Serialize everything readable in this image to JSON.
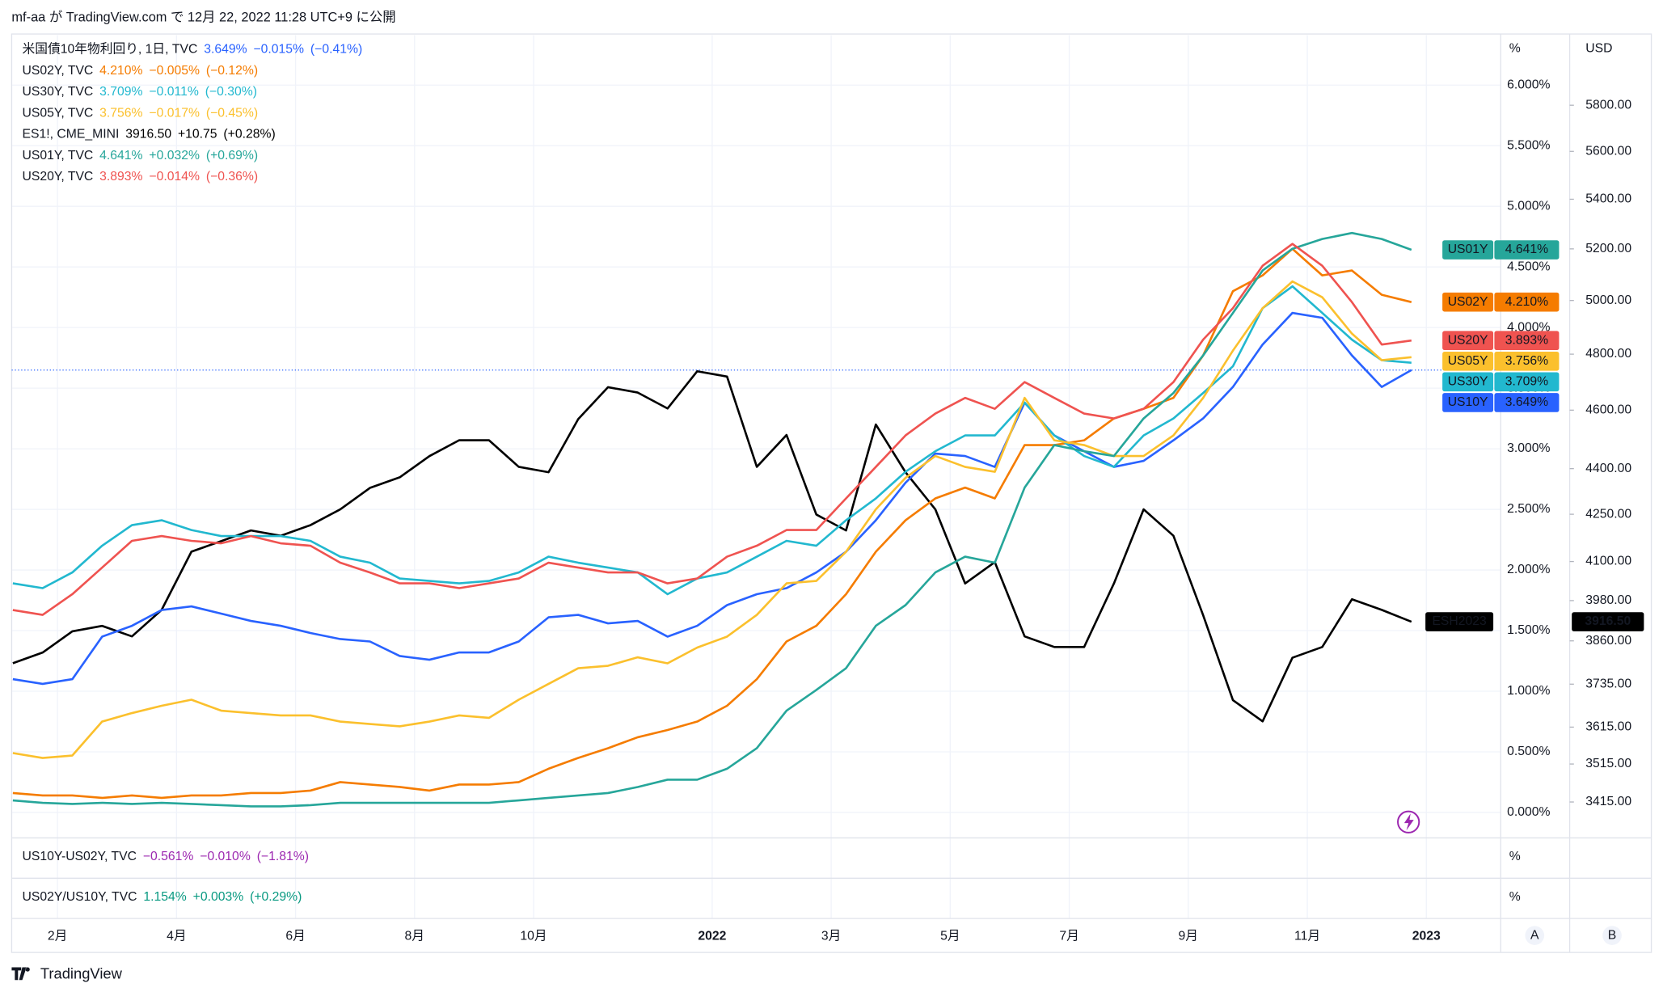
{
  "header": "mf-aa が TradingView.com で 12月 22, 2022 11:28 UTC+9 に公開",
  "footer": "TradingView",
  "chart_data": {
    "type": "line",
    "x": [
      0.25,
      0.75,
      1.25,
      1.75,
      2.25,
      2.75,
      3.25,
      3.75,
      4.25,
      4.75,
      5.25,
      5.75,
      6.25,
      6.75,
      7.25,
      7.75,
      8.25,
      8.75,
      9.25,
      9.75,
      10.25,
      10.75,
      11.25,
      11.75,
      12.25,
      12.75,
      13.25,
      13.75,
      14.25,
      14.75,
      15.25,
      15.75,
      16.25,
      16.75,
      17.25,
      17.75,
      18.25,
      18.75,
      19.25,
      19.75,
      20.25,
      20.75,
      21.25,
      21.75,
      22.25,
      22.75,
      23.25,
      23.75
    ],
    "xlim": [
      0.23,
      25.25
    ],
    "xticks": [
      {
        "value": 1,
        "label": "2月"
      },
      {
        "value": 3,
        "label": "4月"
      },
      {
        "value": 5,
        "label": "6月"
      },
      {
        "value": 7,
        "label": "8月"
      },
      {
        "value": 9,
        "label": "10月"
      },
      {
        "value": 12,
        "label": "2022"
      },
      {
        "value": 14,
        "label": "3月"
      },
      {
        "value": 16,
        "label": "5月"
      },
      {
        "value": 18,
        "label": "7月"
      },
      {
        "value": 20,
        "label": "9月"
      },
      {
        "value": 22,
        "label": "11月"
      },
      {
        "value": 24,
        "label": "2023"
      }
    ],
    "ylabel": "%",
    "ylim": [
      -0.21,
      6.395
    ],
    "yticks": [
      {
        "value": 0,
        "label": "0.000%"
      },
      {
        "value": 0.5,
        "label": "0.500%"
      },
      {
        "value": 1,
        "label": "1.000%"
      },
      {
        "value": 1.5,
        "label": "1.500%"
      },
      {
        "value": 2,
        "label": "2.000%"
      },
      {
        "value": 2.5,
        "label": "2.500%"
      },
      {
        "value": 3,
        "label": "3.000%"
      },
      {
        "value": 3.5,
        "label": "3.500%"
      },
      {
        "value": 4,
        "label": "4.000%"
      },
      {
        "value": 4.5,
        "label": "4.500%"
      },
      {
        "value": 5,
        "label": "5.000%"
      },
      {
        "value": 5.5,
        "label": "5.500%"
      },
      {
        "value": 6,
        "label": "6.000%"
      }
    ],
    "y2label": "USD",
    "y2lim": [
      3323,
      6108
    ],
    "y2log": true,
    "y2ticks": [
      {
        "value": 3415,
        "label": "3415.00"
      },
      {
        "value": 3515,
        "label": "3515.00"
      },
      {
        "value": 3615,
        "label": "3615.00"
      },
      {
        "value": 3735,
        "label": "3735.00"
      },
      {
        "value": 3860,
        "label": "3860.00"
      },
      {
        "value": 3980,
        "label": "3980.00"
      },
      {
        "value": 4100,
        "label": "4100.00"
      },
      {
        "value": 4250,
        "label": "4250.00"
      },
      {
        "value": 4400,
        "label": "4400.00"
      },
      {
        "value": 4600,
        "label": "4600.00"
      },
      {
        "value": 4800,
        "label": "4800.00"
      },
      {
        "value": 5000,
        "label": "5000.00"
      },
      {
        "value": 5200,
        "label": "5200.00"
      },
      {
        "value": 5400,
        "label": "5400.00"
      },
      {
        "value": 5600,
        "label": "5600.00"
      },
      {
        "value": 5800,
        "label": "5800.00"
      }
    ],
    "grid": true,
    "series": [
      {
        "name": "米国債10年物利回り, 1日, TVC",
        "tag": "US10Y",
        "color": "#2962ff",
        "last_label": "3.649%",
        "change": "−0.015%",
        "change_pct": "(−0.41%)",
        "values": [
          1.1,
          1.06,
          1.1,
          1.45,
          1.54,
          1.67,
          1.7,
          1.64,
          1.58,
          1.54,
          1.48,
          1.43,
          1.41,
          1.29,
          1.26,
          1.32,
          1.32,
          1.41,
          1.61,
          1.63,
          1.56,
          1.58,
          1.45,
          1.54,
          1.71,
          1.8,
          1.85,
          1.98,
          2.15,
          2.41,
          2.72,
          2.96,
          2.94,
          2.85,
          3.38,
          3.11,
          2.98,
          2.85,
          2.9,
          3.07,
          3.25,
          3.51,
          3.86,
          4.12,
          4.08,
          3.77,
          3.51,
          3.649
        ]
      },
      {
        "name": "US02Y, TVC",
        "tag": "US02Y",
        "color": "#f57c00",
        "last_label": "4.210%",
        "change": "−0.005%",
        "change_pct": "(−0.12%)",
        "values": [
          0.16,
          0.14,
          0.14,
          0.12,
          0.14,
          0.12,
          0.14,
          0.14,
          0.16,
          0.16,
          0.18,
          0.25,
          0.23,
          0.21,
          0.18,
          0.23,
          0.23,
          0.25,
          0.36,
          0.45,
          0.53,
          0.62,
          0.68,
          0.75,
          0.88,
          1.1,
          1.41,
          1.54,
          1.8,
          2.15,
          2.41,
          2.59,
          2.68,
          2.59,
          3.03,
          3.03,
          3.07,
          3.25,
          3.33,
          3.42,
          3.77,
          4.3,
          4.43,
          4.65,
          4.43,
          4.47,
          4.27,
          4.21
        ]
      },
      {
        "name": "US30Y, TVC",
        "tag": "US30Y",
        "color": "#22b8cf",
        "last_label": "3.709%",
        "change": "−0.011%",
        "change_pct": "(−0.30%)",
        "values": [
          1.89,
          1.85,
          1.98,
          2.2,
          2.37,
          2.41,
          2.33,
          2.28,
          2.28,
          2.28,
          2.24,
          2.11,
          2.06,
          1.93,
          1.91,
          1.89,
          1.91,
          1.98,
          2.11,
          2.06,
          2.02,
          1.98,
          1.8,
          1.93,
          1.98,
          2.11,
          2.24,
          2.2,
          2.41,
          2.59,
          2.81,
          2.98,
          3.11,
          3.11,
          3.38,
          3.11,
          2.94,
          2.85,
          3.11,
          3.25,
          3.46,
          3.68,
          4.16,
          4.34,
          4.12,
          3.9,
          3.73,
          3.709
        ]
      },
      {
        "name": "US05Y, TVC",
        "tag": "US05Y",
        "color": "#fbc02d",
        "last_label": "3.756%",
        "change": "−0.017%",
        "change_pct": "(−0.45%)",
        "values": [
          0.49,
          0.45,
          0.47,
          0.75,
          0.82,
          0.88,
          0.93,
          0.84,
          0.82,
          0.8,
          0.8,
          0.75,
          0.73,
          0.71,
          0.75,
          0.8,
          0.78,
          0.93,
          1.06,
          1.19,
          1.21,
          1.28,
          1.23,
          1.36,
          1.45,
          1.63,
          1.89,
          1.91,
          2.15,
          2.5,
          2.76,
          2.94,
          2.85,
          2.81,
          3.42,
          3.07,
          3.03,
          2.94,
          2.94,
          3.11,
          3.42,
          3.81,
          4.16,
          4.38,
          4.25,
          3.95,
          3.73,
          3.756
        ]
      },
      {
        "name": "ES1!, CME_MINI",
        "tag": "ESH2023",
        "color": "#000000",
        "axis": "y2",
        "last_label": "3916.50",
        "change": "+10.75",
        "change_pct": "(+0.28%)",
        "values": [
          3795,
          3826,
          3888,
          3904,
          3873,
          3952,
          4131,
          4164,
          4198,
          4181,
          4215,
          4266,
          4336,
          4371,
          4442,
          4496,
          4496,
          4406,
          4388,
          4569,
          4681,
          4662,
          4606,
          4738,
          4719,
          4406,
          4514,
          4249,
          4198,
          4550,
          4388,
          4266,
          4032,
          4098,
          3873,
          3842,
          3842,
          4032,
          4266,
          4181,
          3936,
          3690,
          3631,
          3811,
          3842,
          3984,
          3952,
          3916.5
        ]
      },
      {
        "name": "US01Y, TVC",
        "tag": "US01Y",
        "color": "#26a69a",
        "last_label": "4.641%",
        "change": "+0.032%",
        "change_pct": "(+0.69%)",
        "values": [
          0.1,
          0.08,
          0.07,
          0.08,
          0.07,
          0.08,
          0.07,
          0.06,
          0.05,
          0.05,
          0.06,
          0.08,
          0.08,
          0.08,
          0.08,
          0.08,
          0.08,
          0.1,
          0.12,
          0.14,
          0.16,
          0.21,
          0.27,
          0.27,
          0.36,
          0.53,
          0.84,
          1.01,
          1.19,
          1.54,
          1.71,
          1.98,
          2.11,
          2.06,
          2.68,
          3.03,
          2.98,
          2.94,
          3.25,
          3.46,
          3.77,
          4.12,
          4.47,
          4.65,
          4.73,
          4.78,
          4.73,
          4.641
        ]
      },
      {
        "name": "US20Y, TVC",
        "tag": "US20Y",
        "color": "#ef5350",
        "last_label": "3.893%",
        "change": "−0.014%",
        "change_pct": "(−0.36%)",
        "values": [
          1.67,
          1.63,
          1.8,
          2.02,
          2.24,
          2.28,
          2.24,
          2.22,
          2.28,
          2.22,
          2.2,
          2.06,
          1.98,
          1.89,
          1.89,
          1.85,
          1.89,
          1.93,
          2.06,
          2.02,
          1.98,
          1.98,
          1.89,
          1.93,
          2.11,
          2.2,
          2.33,
          2.33,
          2.59,
          2.85,
          3.11,
          3.29,
          3.42,
          3.33,
          3.55,
          3.42,
          3.29,
          3.25,
          3.33,
          3.55,
          3.9,
          4.16,
          4.51,
          4.69,
          4.51,
          4.21,
          3.86,
          3.893
        ]
      }
    ],
    "panes": [
      {
        "title": "US10Y-US02Y, TVC",
        "color": "#9c27b0",
        "axis_label": "%",
        "texts": [
          "−0.561%",
          "−0.010%",
          "(−1.81%)"
        ]
      },
      {
        "title": "US02Y/US10Y, TVC",
        "color": "#089981",
        "axis_label": "%",
        "texts": [
          "1.154%",
          "+0.003%",
          "(+0.29%)"
        ]
      }
    ],
    "scale_buttons": [
      "A",
      "B"
    ]
  }
}
